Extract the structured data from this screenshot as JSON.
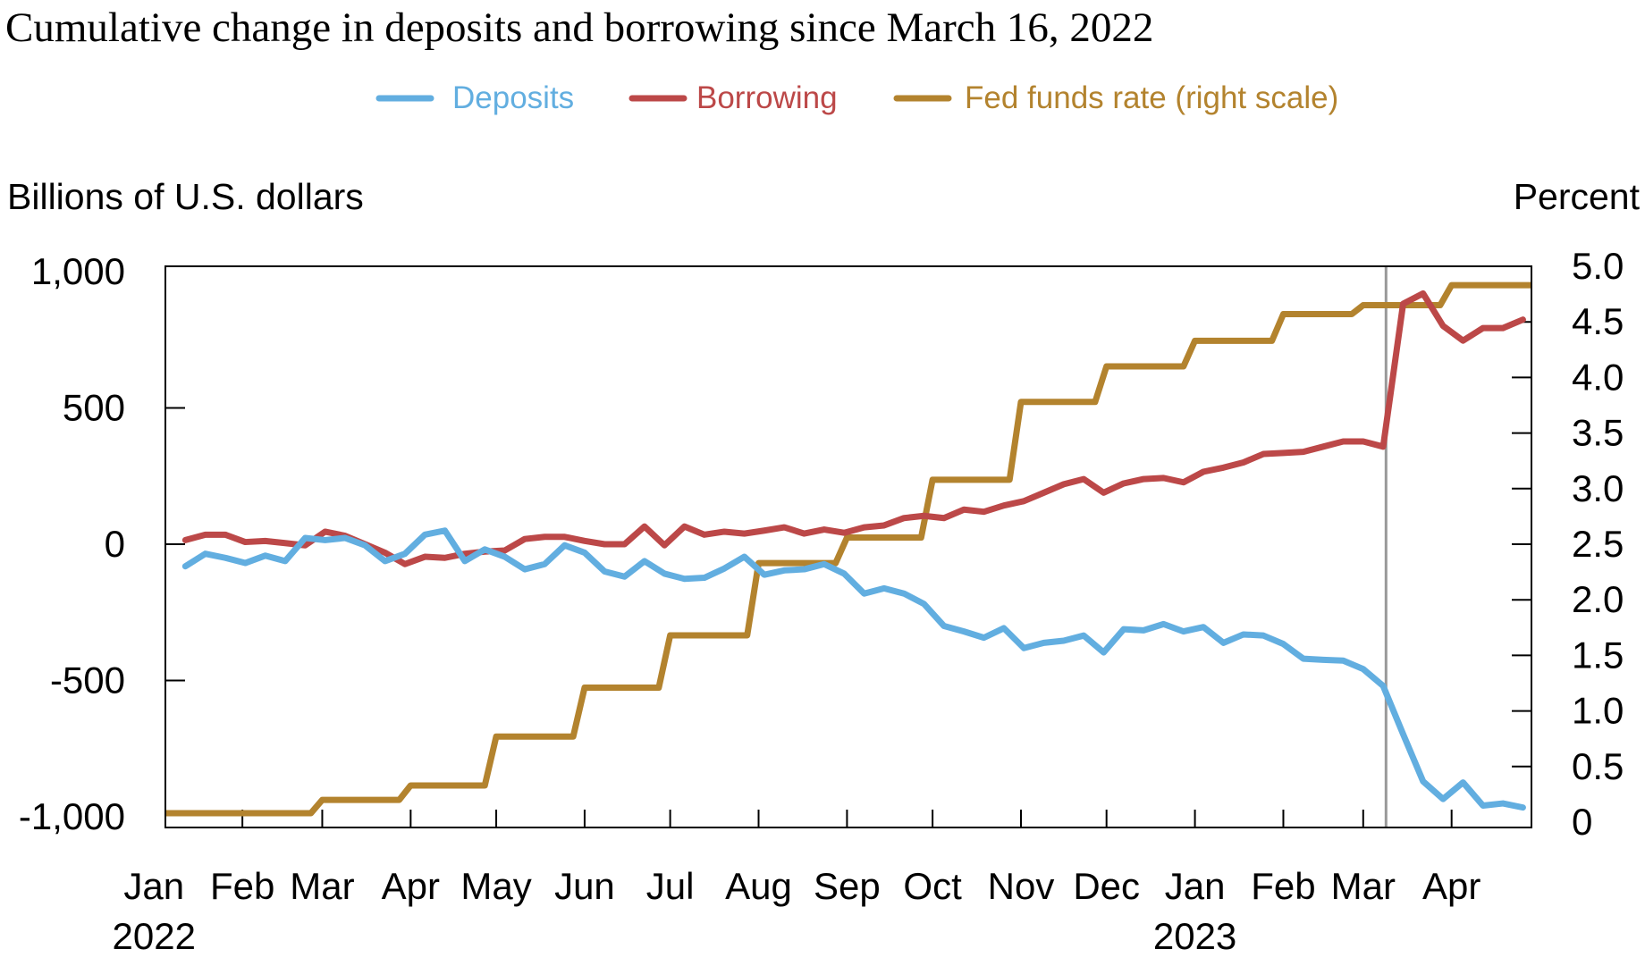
{
  "chart_data": {
    "type": "line",
    "title": "Cumulative change in deposits and borrowing since March 16, 2022",
    "ylabel_left": "Billions of U.S. dollars",
    "ylabel_right": "Percent",
    "ylim_left": [
      -1000,
      1000
    ],
    "ylim_right": [
      0,
      5
    ],
    "left_ticks": [
      1000,
      500,
      0,
      -500,
      -1000
    ],
    "left_tick_labels": [
      "1,000",
      "500",
      "0",
      "-500",
      "-1,000"
    ],
    "right_ticks": [
      5.0,
      4.5,
      4.0,
      3.5,
      3.0,
      2.5,
      2.0,
      1.5,
      1.0,
      0.5,
      0
    ],
    "right_tick_labels": [
      "5.0",
      "4.5",
      "4.0",
      "3.5",
      "3.0",
      "2.5",
      "2.0",
      "1.5",
      "1.0",
      "0.5",
      "0"
    ],
    "x_range": [
      "2022-01-05",
      "2023-04-29"
    ],
    "x_ticks": [
      {
        "date": "2022-01-01",
        "label": "Jan",
        "year": "2022"
      },
      {
        "date": "2022-02-01",
        "label": "Feb"
      },
      {
        "date": "2022-03-01",
        "label": "Mar"
      },
      {
        "date": "2022-04-01",
        "label": "Apr"
      },
      {
        "date": "2022-05-01",
        "label": "May"
      },
      {
        "date": "2022-06-01",
        "label": "Jun"
      },
      {
        "date": "2022-07-01",
        "label": "Jul"
      },
      {
        "date": "2022-08-01",
        "label": "Aug"
      },
      {
        "date": "2022-09-01",
        "label": "Sep"
      },
      {
        "date": "2022-10-01",
        "label": "Oct"
      },
      {
        "date": "2022-11-01",
        "label": "Nov"
      },
      {
        "date": "2022-12-01",
        "label": "Dec"
      },
      {
        "date": "2023-01-01",
        "label": "Jan",
        "year": "2023"
      },
      {
        "date": "2023-02-01",
        "label": "Feb"
      },
      {
        "date": "2023-03-01",
        "label": "Mar"
      },
      {
        "date": "2023-04-01",
        "label": "Apr"
      }
    ],
    "vline_date": "2023-03-09",
    "legend_position": "top-center",
    "grid": false,
    "weekly_start": "2022-01-12",
    "weekly_step_days": 7,
    "series": [
      {
        "name": "Deposits",
        "axis": "left",
        "color": "#62AEE0",
        "values": [
          -81,
          -35,
          -50,
          -69,
          -42,
          -62,
          23,
          15,
          23,
          -4,
          -62,
          -35,
          35,
          50,
          -62,
          -19,
          -46,
          -92,
          -73,
          -4,
          -31,
          -100,
          -119,
          -62,
          -108,
          -127,
          -123,
          -89,
          -46,
          -112,
          -96,
          -92,
          -73,
          -108,
          -181,
          -162,
          -181,
          -219,
          -300,
          -320,
          -343,
          -308,
          -381,
          -362,
          -354,
          -335,
          -397,
          -312,
          -316,
          -293,
          -320,
          -304,
          -362,
          -331,
          -335,
          -366,
          -420,
          -424,
          -427,
          -458,
          -520,
          -697,
          -870,
          -935,
          -874,
          -959,
          -951,
          -966
        ]
      },
      {
        "name": "Borrowing",
        "axis": "left",
        "color": "#BC4848",
        "values": [
          15,
          35,
          35,
          8,
          12,
          4,
          -4,
          46,
          31,
          0,
          -31,
          -73,
          -46,
          -50,
          -35,
          -27,
          -23,
          19,
          27,
          27,
          12,
          0,
          0,
          65,
          -4,
          65,
          35,
          46,
          39,
          50,
          62,
          39,
          54,
          42,
          62,
          69,
          96,
          104,
          96,
          127,
          119,
          142,
          158,
          189,
          220,
          239,
          189,
          223,
          239,
          243,
          227,
          266,
          281,
          300,
          331,
          335,
          339,
          358,
          377,
          377,
          358,
          882,
          920,
          801,
          747,
          793,
          793,
          824
        ]
      },
      {
        "name": "Fed funds rate (right scale)",
        "axis": "right",
        "color": "#B3832E",
        "monthly": [
          {
            "month": "2022-01",
            "value": 0.08
          },
          {
            "month": "2022-02",
            "value": 0.08
          },
          {
            "month": "2022-03",
            "value": 0.2
          },
          {
            "month": "2022-04",
            "value": 0.33
          },
          {
            "month": "2022-05",
            "value": 0.77
          },
          {
            "month": "2022-06",
            "value": 1.21
          },
          {
            "month": "2022-07",
            "value": 1.68
          },
          {
            "month": "2022-08",
            "value": 2.33
          },
          {
            "month": "2022-09",
            "value": 2.56
          },
          {
            "month": "2022-10",
            "value": 3.08
          },
          {
            "month": "2022-11",
            "value": 3.78
          },
          {
            "month": "2022-12",
            "value": 4.1
          },
          {
            "month": "2023-01",
            "value": 4.33
          },
          {
            "month": "2023-02",
            "value": 4.57
          },
          {
            "month": "2023-03",
            "value": 4.65
          },
          {
            "month": "2023-04",
            "value": 4.83
          }
        ]
      }
    ]
  }
}
